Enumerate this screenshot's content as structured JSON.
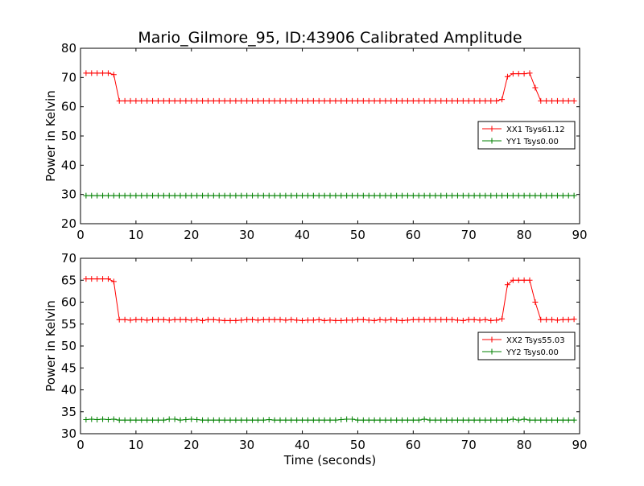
{
  "figure": {
    "title": "Mario_Gilmore_95, ID:43906 Calibrated Amplitude",
    "xlabel": "Time (seconds)"
  },
  "chart_data": [
    {
      "type": "line",
      "ylabel": "Power in Kelvin",
      "xlim": [
        0,
        90
      ],
      "ylim": [
        20,
        80
      ],
      "xticks": [
        0,
        10,
        20,
        30,
        40,
        50,
        60,
        70,
        80,
        90
      ],
      "yticks": [
        20,
        30,
        40,
        50,
        60,
        70,
        80
      ],
      "grid": false,
      "legend_position": "right",
      "series": [
        {
          "name": "XX1 Tsys61.12",
          "color": "#ff0000",
          "x": [
            1,
            2,
            3,
            4,
            5,
            6,
            7,
            8,
            9,
            10,
            11,
            12,
            13,
            14,
            15,
            16,
            17,
            18,
            19,
            20,
            21,
            22,
            23,
            24,
            25,
            26,
            27,
            28,
            29,
            30,
            31,
            32,
            33,
            34,
            35,
            36,
            37,
            38,
            39,
            40,
            41,
            42,
            43,
            44,
            45,
            46,
            47,
            48,
            49,
            50,
            51,
            52,
            53,
            54,
            55,
            56,
            57,
            58,
            59,
            60,
            61,
            62,
            63,
            64,
            65,
            66,
            67,
            68,
            69,
            70,
            71,
            72,
            73,
            74,
            75,
            76,
            77,
            78,
            79,
            80,
            81,
            82,
            83,
            84,
            85,
            86,
            87,
            88,
            89
          ],
          "y": [
            71.5,
            71.5,
            71.5,
            71.5,
            71.5,
            71.0,
            62.0,
            62.0,
            62.0,
            62.0,
            62.0,
            62.0,
            62.0,
            62.0,
            62.0,
            62.0,
            62.0,
            62.0,
            62.0,
            62.0,
            62.0,
            62.0,
            62.0,
            62.0,
            62.0,
            62.0,
            62.0,
            62.0,
            62.0,
            62.0,
            62.0,
            62.0,
            62.0,
            62.0,
            62.0,
            62.0,
            62.0,
            62.0,
            62.0,
            62.0,
            62.0,
            62.0,
            62.0,
            62.0,
            62.0,
            62.0,
            62.0,
            62.0,
            62.0,
            62.0,
            62.0,
            62.0,
            62.0,
            62.0,
            62.0,
            62.0,
            62.0,
            62.0,
            62.0,
            62.0,
            62.0,
            62.0,
            62.0,
            62.0,
            62.0,
            62.0,
            62.0,
            62.0,
            62.0,
            62.0,
            62.0,
            62.0,
            62.0,
            62.0,
            62.0,
            62.5,
            70.3,
            71.3,
            71.3,
            71.3,
            71.5,
            66.5,
            62.0,
            62.0,
            62.0,
            62.0,
            62.0,
            62.0,
            62.0
          ]
        },
        {
          "name": "YY1 Tsys0.00",
          "color": "#008000",
          "x": [
            1,
            2,
            3,
            4,
            5,
            6,
            7,
            8,
            9,
            10,
            11,
            12,
            13,
            14,
            15,
            16,
            17,
            18,
            19,
            20,
            21,
            22,
            23,
            24,
            25,
            26,
            27,
            28,
            29,
            30,
            31,
            32,
            33,
            34,
            35,
            36,
            37,
            38,
            39,
            40,
            41,
            42,
            43,
            44,
            45,
            46,
            47,
            48,
            49,
            50,
            51,
            52,
            53,
            54,
            55,
            56,
            57,
            58,
            59,
            60,
            61,
            62,
            63,
            64,
            65,
            66,
            67,
            68,
            69,
            70,
            71,
            72,
            73,
            74,
            75,
            76,
            77,
            78,
            79,
            80,
            81,
            82,
            83,
            84,
            85,
            86,
            87,
            88,
            89
          ],
          "y": [
            29.6,
            29.6,
            29.6,
            29.6,
            29.6,
            29.6,
            29.6,
            29.6,
            29.6,
            29.6,
            29.6,
            29.6,
            29.6,
            29.6,
            29.6,
            29.6,
            29.6,
            29.6,
            29.6,
            29.6,
            29.6,
            29.6,
            29.6,
            29.6,
            29.6,
            29.6,
            29.6,
            29.6,
            29.6,
            29.6,
            29.6,
            29.6,
            29.6,
            29.6,
            29.6,
            29.6,
            29.6,
            29.6,
            29.6,
            29.6,
            29.6,
            29.6,
            29.6,
            29.6,
            29.6,
            29.6,
            29.6,
            29.6,
            29.6,
            29.6,
            29.6,
            29.6,
            29.6,
            29.6,
            29.6,
            29.6,
            29.6,
            29.6,
            29.6,
            29.6,
            29.6,
            29.6,
            29.6,
            29.6,
            29.6,
            29.6,
            29.6,
            29.6,
            29.6,
            29.6,
            29.6,
            29.6,
            29.6,
            29.6,
            29.6,
            29.6,
            29.6,
            29.6,
            29.6,
            29.6,
            29.6,
            29.6,
            29.6,
            29.6,
            29.6,
            29.6,
            29.6,
            29.6,
            29.6
          ]
        }
      ]
    },
    {
      "type": "line",
      "ylabel": "Power in Kelvin",
      "xlabel": "Time (seconds)",
      "xlim": [
        0,
        90
      ],
      "ylim": [
        30,
        70
      ],
      "xticks": [
        0,
        10,
        20,
        30,
        40,
        50,
        60,
        70,
        80,
        90
      ],
      "yticks": [
        30,
        35,
        40,
        45,
        50,
        55,
        60,
        65,
        70
      ],
      "grid": false,
      "legend_position": "right",
      "series": [
        {
          "name": "XX2 Tsys55.03",
          "color": "#ff0000",
          "x": [
            1,
            2,
            3,
            4,
            5,
            6,
            7,
            8,
            9,
            10,
            11,
            12,
            13,
            14,
            15,
            16,
            17,
            18,
            19,
            20,
            21,
            22,
            23,
            24,
            25,
            26,
            27,
            28,
            29,
            30,
            31,
            32,
            33,
            34,
            35,
            36,
            37,
            38,
            39,
            40,
            41,
            42,
            43,
            44,
            45,
            46,
            47,
            48,
            49,
            50,
            51,
            52,
            53,
            54,
            55,
            56,
            57,
            58,
            59,
            60,
            61,
            62,
            63,
            64,
            65,
            66,
            67,
            68,
            69,
            70,
            71,
            72,
            73,
            74,
            75,
            76,
            77,
            78,
            79,
            80,
            81,
            82,
            83,
            84,
            85,
            86,
            87,
            88,
            89
          ],
          "y": [
            65.3,
            65.3,
            65.3,
            65.3,
            65.3,
            64.7,
            56.0,
            56.0,
            55.9,
            56.0,
            56.0,
            55.9,
            56.0,
            56.0,
            56.0,
            55.9,
            56.0,
            56.0,
            56.0,
            55.9,
            56.0,
            55.8,
            56.0,
            56.0,
            55.9,
            55.8,
            55.8,
            55.8,
            55.9,
            56.0,
            56.0,
            55.9,
            56.0,
            56.0,
            56.0,
            56.0,
            55.9,
            56.0,
            55.9,
            55.8,
            55.9,
            55.9,
            56.0,
            55.8,
            55.9,
            55.8,
            55.8,
            55.9,
            55.9,
            56.0,
            56.0,
            55.9,
            55.8,
            56.0,
            55.9,
            56.0,
            55.9,
            55.8,
            55.9,
            56.0,
            56.0,
            56.0,
            56.0,
            56.0,
            56.0,
            56.0,
            56.0,
            55.9,
            55.8,
            56.0,
            56.0,
            55.9,
            56.0,
            55.8,
            55.9,
            56.2,
            64.0,
            65.0,
            65.0,
            65.0,
            65.0,
            60.0,
            56.0,
            56.0,
            56.0,
            55.9,
            56.0,
            56.0,
            56.1
          ]
        },
        {
          "name": "YY2 Tsys0.00",
          "color": "#008000",
          "x": [
            1,
            2,
            3,
            4,
            5,
            6,
            7,
            8,
            9,
            10,
            11,
            12,
            13,
            14,
            15,
            16,
            17,
            18,
            19,
            20,
            21,
            22,
            23,
            24,
            25,
            26,
            27,
            28,
            29,
            30,
            31,
            32,
            33,
            34,
            35,
            36,
            37,
            38,
            39,
            40,
            41,
            42,
            43,
            44,
            45,
            46,
            47,
            48,
            49,
            50,
            51,
            52,
            53,
            54,
            55,
            56,
            57,
            58,
            59,
            60,
            61,
            62,
            63,
            64,
            65,
            66,
            67,
            68,
            69,
            70,
            71,
            72,
            73,
            74,
            75,
            76,
            77,
            78,
            79,
            80,
            81,
            82,
            83,
            84,
            85,
            86,
            87,
            88,
            89
          ],
          "y": [
            33.2,
            33.3,
            33.2,
            33.3,
            33.2,
            33.3,
            33.1,
            33.1,
            33.1,
            33.1,
            33.1,
            33.1,
            33.1,
            33.1,
            33.1,
            33.3,
            33.3,
            33.1,
            33.2,
            33.3,
            33.2,
            33.1,
            33.1,
            33.1,
            33.1,
            33.1,
            33.1,
            33.1,
            33.1,
            33.1,
            33.1,
            33.1,
            33.1,
            33.2,
            33.1,
            33.1,
            33.1,
            33.1,
            33.1,
            33.1,
            33.1,
            33.1,
            33.1,
            33.1,
            33.1,
            33.1,
            33.2,
            33.3,
            33.3,
            33.1,
            33.1,
            33.1,
            33.1,
            33.1,
            33.1,
            33.1,
            33.1,
            33.1,
            33.1,
            33.1,
            33.1,
            33.3,
            33.1,
            33.1,
            33.1,
            33.1,
            33.1,
            33.1,
            33.1,
            33.1,
            33.1,
            33.1,
            33.1,
            33.1,
            33.1,
            33.1,
            33.1,
            33.3,
            33.1,
            33.3,
            33.1,
            33.1,
            33.1,
            33.1,
            33.1,
            33.1,
            33.1,
            33.1,
            33.1
          ]
        }
      ]
    }
  ]
}
